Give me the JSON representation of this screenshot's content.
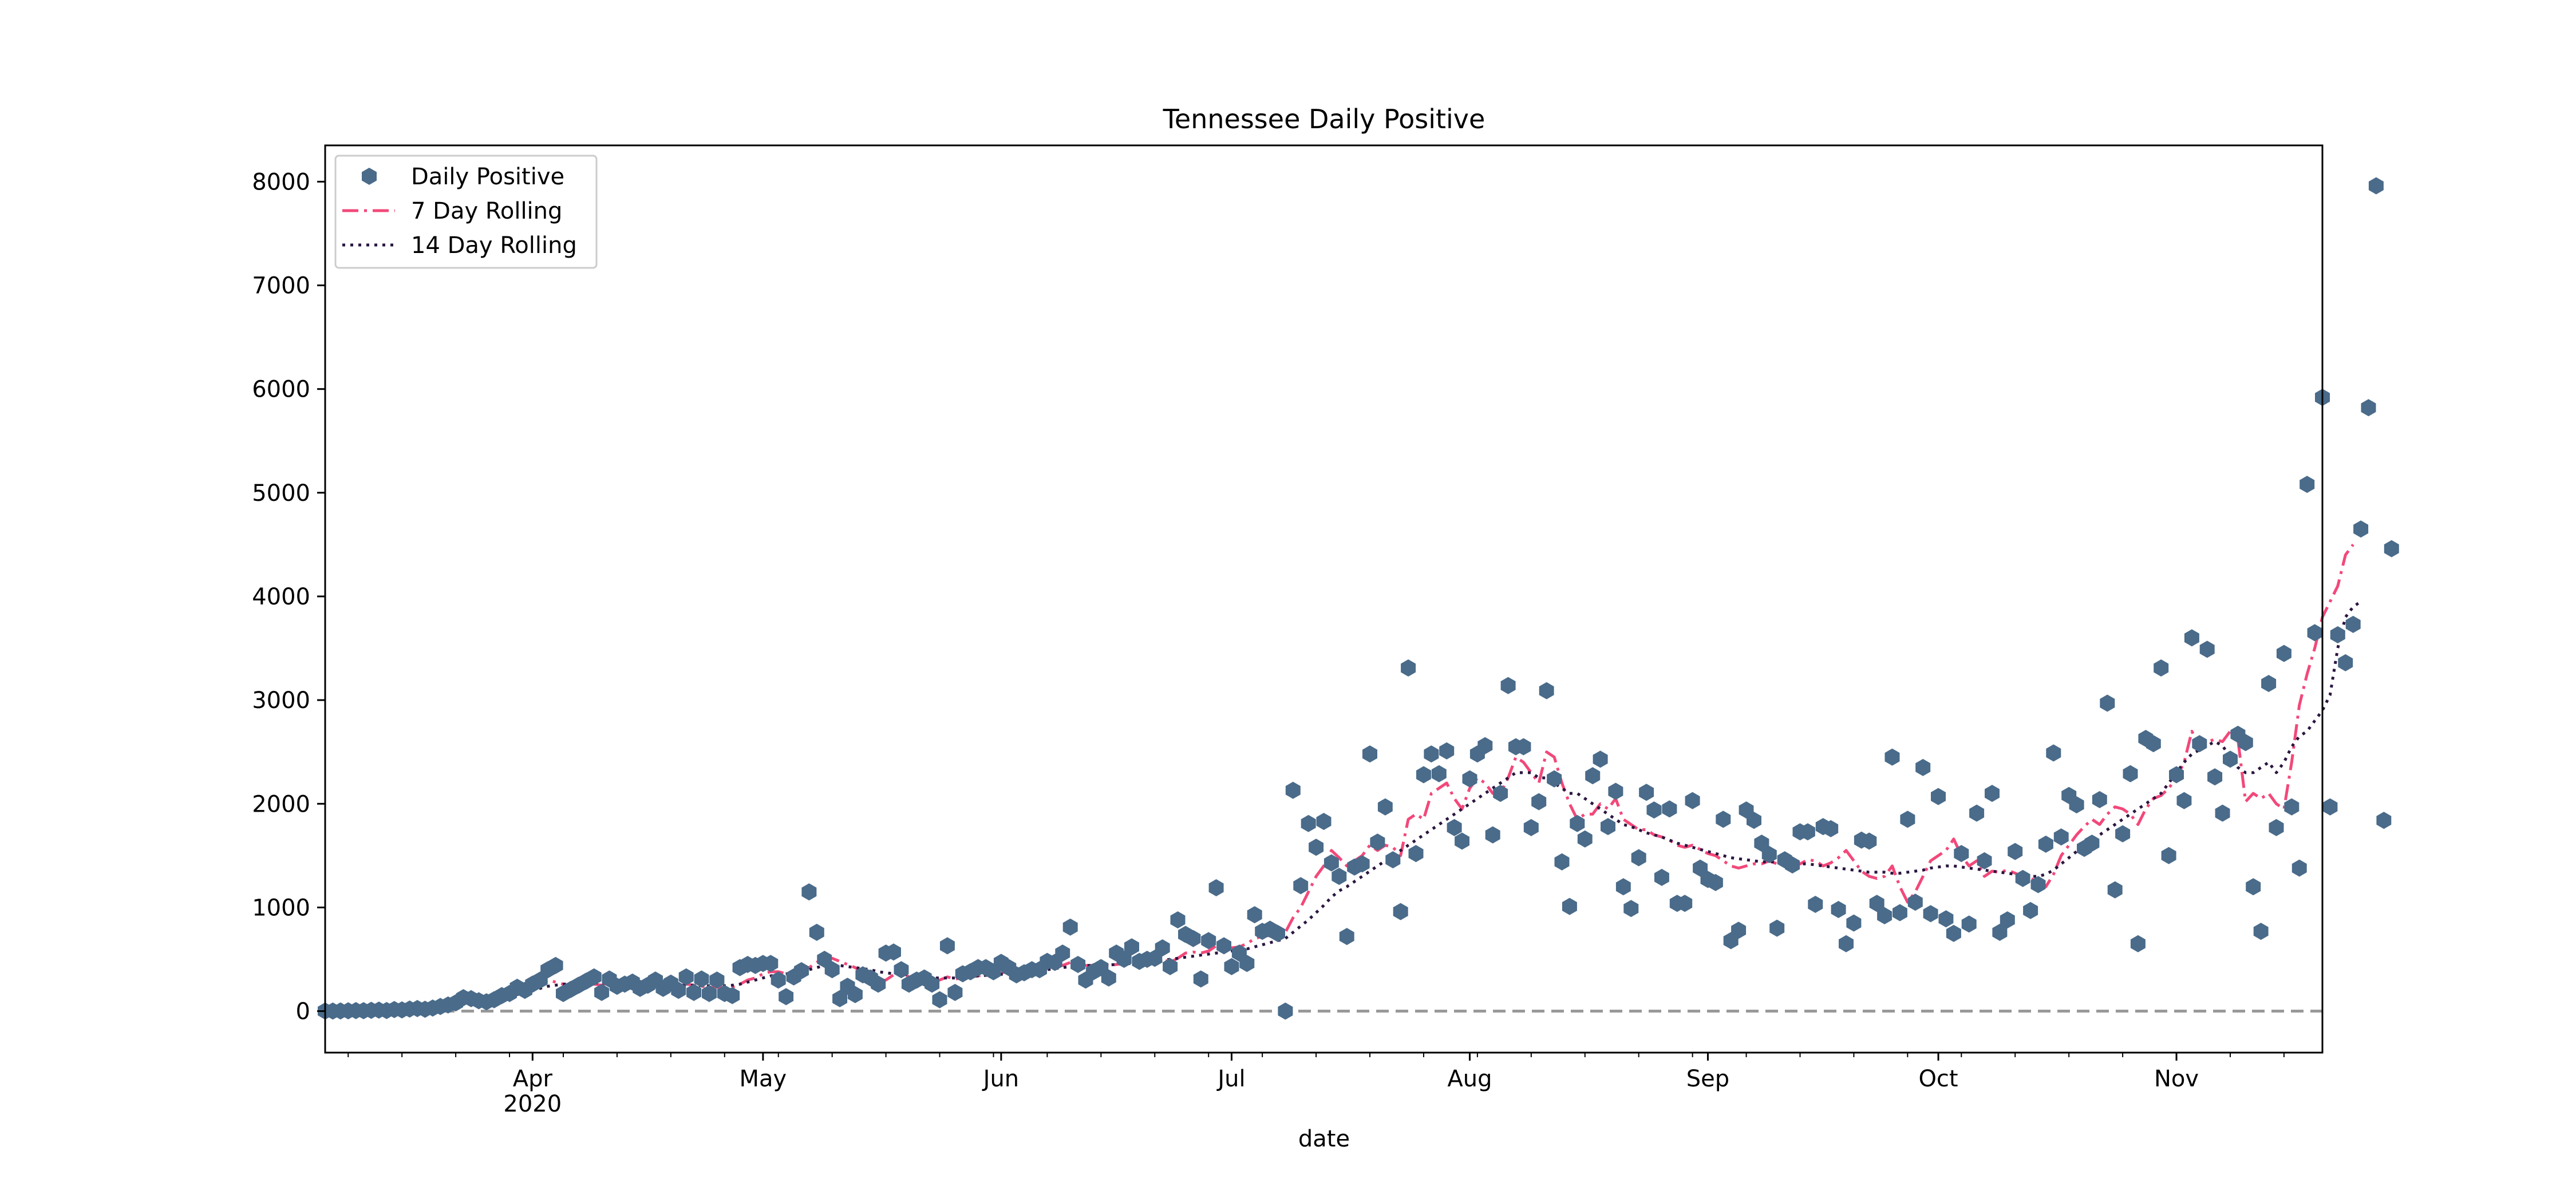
{
  "chart_data": {
    "type": "scatter",
    "title": "Tennessee Daily Positive",
    "xlabel": "date",
    "ylabel": "",
    "ylim": [
      -400,
      8350
    ],
    "xlim": [
      "2020-03-05",
      "2020-11-20"
    ],
    "yticks": [
      0,
      1000,
      2000,
      3000,
      4000,
      5000,
      6000,
      7000,
      8000
    ],
    "xticks": [
      {
        "date": "2020-04-01",
        "label": "Apr",
        "sublabel": "2020"
      },
      {
        "date": "2020-05-01",
        "label": "May"
      },
      {
        "date": "2020-06-01",
        "label": "Jun"
      },
      {
        "date": "2020-07-01",
        "label": "Jul"
      },
      {
        "date": "2020-08-01",
        "label": "Aug"
      },
      {
        "date": "2020-09-01",
        "label": "Sep"
      },
      {
        "date": "2020-10-01",
        "label": "Oct"
      },
      {
        "date": "2020-11-01",
        "label": "Nov"
      }
    ],
    "minor_xticks": [
      "2020-03-08",
      "2020-03-15",
      "2020-03-22",
      "2020-03-29",
      "2020-04-05",
      "2020-04-12",
      "2020-04-19",
      "2020-04-26",
      "2020-05-03",
      "2020-05-10",
      "2020-05-17",
      "2020-05-24",
      "2020-05-31",
      "2020-06-07",
      "2020-06-14",
      "2020-06-21",
      "2020-06-28",
      "2020-07-05",
      "2020-07-12",
      "2020-07-19",
      "2020-07-26",
      "2020-08-02",
      "2020-08-09",
      "2020-08-16",
      "2020-08-23",
      "2020-08-30",
      "2020-09-06",
      "2020-09-13",
      "2020-09-20",
      "2020-09-27",
      "2020-10-04",
      "2020-10-11",
      "2020-10-18",
      "2020-10-25",
      "2020-11-01",
      "2020-11-08",
      "2020-11-15"
    ],
    "start_date": "2020-03-05",
    "grid": false,
    "legend_position": "top-left",
    "reference_line": {
      "y": 0,
      "style": "dashed",
      "color": "#999999"
    },
    "series": [
      {
        "name": "Daily Positive",
        "type": "scatter",
        "marker": "hexagon",
        "color": "#4a6b8a",
        "values": [
          1,
          1,
          2,
          3,
          5,
          4,
          8,
          10,
          6,
          15,
          12,
          20,
          25,
          18,
          30,
          45,
          60,
          80,
          130,
          120,
          100,
          90,
          110,
          150,
          170,
          230,
          200,
          260,
          300,
          400,
          440,
          170,
          210,
          250,
          290,
          330,
          180,
          310,
          240,
          260,
          280,
          220,
          250,
          300,
          220,
          270,
          200,
          330,
          180,
          310,
          170,
          300,
          170,
          150,
          420,
          450,
          440,
          460,
          460,
          300,
          140,
          330,
          390,
          1150,
          760,
          500,
          400,
          120,
          240,
          160,
          350,
          320,
          260,
          560,
          570,
          400,
          260,
          300,
          320,
          260,
          110,
          630,
          180,
          360,
          380,
          420,
          420,
          380,
          470,
          420,
          350,
          370,
          400,
          400,
          480,
          470,
          560,
          810,
          450,
          300,
          380,
          420,
          320,
          560,
          500,
          620,
          480,
          500,
          510,
          610,
          430,
          880,
          740,
          700,
          310,
          680,
          1190,
          630,
          430,
          560,
          460,
          930,
          770,
          790,
          750,
          0,
          2130,
          1210,
          1810,
          1580,
          1830,
          1430,
          1300,
          720,
          1390,
          1420,
          2480,
          1630,
          1970,
          1460,
          960,
          3310,
          1520,
          2280,
          2480,
          2290,
          2510,
          1770,
          1640,
          2240,
          2480,
          2560,
          1700,
          2100,
          3140,
          2550,
          2550,
          1770,
          2020,
          3090,
          2240,
          1440,
          1010,
          1810,
          1660,
          2270,
          2430,
          1780,
          2120,
          1200,
          990,
          1480,
          2110,
          1940,
          1290,
          1950,
          1040,
          1040,
          2030,
          1380,
          1270,
          1240,
          1850,
          680,
          780,
          1940,
          1840,
          1620,
          1510,
          800,
          1460,
          1410,
          1730,
          1730,
          1030,
          1780,
          1760,
          980,
          650,
          850,
          1650,
          1640,
          1040,
          920,
          2450,
          950,
          1850,
          1050,
          2350,
          940,
          2070,
          890,
          750,
          1520,
          840,
          1910,
          1450,
          2100,
          760,
          880,
          1540,
          1280,
          970,
          1220,
          1610,
          2490,
          1680,
          2080,
          1990,
          1570,
          1620,
          2040,
          2970,
          1170,
          1710,
          2290,
          650,
          2630,
          2580,
          3310,
          1500,
          2280,
          2030,
          3600,
          2580,
          3490,
          2260,
          1910,
          2430,
          2670,
          2590,
          1200,
          770,
          3160,
          1770,
          3450,
          1970,
          1380,
          5080,
          3650,
          5920,
          1970,
          3630,
          3360,
          3730,
          4650,
          5820,
          7960,
          1840,
          4460
        ]
      },
      {
        "name": "7 Day Rolling",
        "type": "line",
        "style": "dashdot",
        "color": "#f2487a",
        "values": [
          1,
          1,
          2,
          3,
          5,
          4,
          8,
          10,
          6,
          15,
          12,
          20,
          25,
          18,
          30,
          45,
          60,
          80,
          110,
          120,
          100,
          90,
          110,
          150,
          170,
          190,
          200,
          220,
          260,
          300,
          280,
          260,
          250,
          270,
          280,
          260,
          250,
          280,
          270,
          260,
          250,
          240,
          240,
          260,
          250,
          240,
          240,
          260,
          250,
          240,
          230,
          230,
          230,
          230,
          260,
          300,
          320,
          360,
          380,
          380,
          360,
          370,
          380,
          420,
          470,
          520,
          510,
          480,
          450,
          420,
          370,
          330,
          290,
          300,
          350,
          380,
          330,
          320,
          310,
          290,
          300,
          330,
          310,
          320,
          330,
          340,
          350,
          360,
          370,
          380,
          380,
          390,
          400,
          410,
          420,
          430,
          440,
          470,
          460,
          440,
          440,
          450,
          440,
          450,
          460,
          480,
          490,
          500,
          510,
          500,
          470,
          510,
          560,
          570,
          560,
          580,
          630,
          640,
          610,
          620,
          650,
          700,
          720,
          730,
          740,
          760,
          900,
          1000,
          1150,
          1300,
          1400,
          1550,
          1480,
          1400,
          1450,
          1500,
          1600,
          1550,
          1600,
          1580,
          1500,
          1850,
          1900,
          1850,
          2100,
          2150,
          2200,
          2050,
          1950,
          2150,
          2250,
          2200,
          2100,
          2100,
          2250,
          2450,
          2400,
          2300,
          2200,
          2500,
          2450,
          2200,
          2000,
          1850,
          1900,
          1900,
          2000,
          1950,
          2050,
          1850,
          1800,
          1750,
          1750,
          1700,
          1680,
          1650,
          1600,
          1580,
          1600,
          1560,
          1520,
          1500,
          1450,
          1400,
          1380,
          1400,
          1420,
          1420,
          1450,
          1420,
          1420,
          1400,
          1420,
          1460,
          1450,
          1400,
          1430,
          1480,
          1550,
          1450,
          1350,
          1300,
          1280,
          1300,
          1400,
          1200,
          1050,
          1150,
          1300,
          1450,
          1500,
          1550,
          1660,
          1500,
          1400,
          1450,
          1300,
          1350,
          1340,
          1360,
          1330,
          1300,
          1280,
          1250,
          1200,
          1320,
          1500,
          1600,
          1700,
          1780,
          1850,
          1800,
          1900,
          1970,
          1950,
          1900,
          1800,
          1950,
          2050,
          2080,
          2150,
          2250,
          2400,
          2700,
          2550,
          2600,
          2620,
          2600,
          2700,
          2620,
          2020,
          2100,
          2050,
          2100,
          2000,
          1950,
          2400,
          2950,
          3250,
          3500,
          3800,
          3950,
          4100,
          4400,
          4500
        ]
      },
      {
        "name": "14 Day Rolling",
        "type": "line",
        "style": "dotted",
        "color": "#2b1640",
        "values": [
          1,
          1,
          2,
          3,
          5,
          4,
          8,
          10,
          6,
          15,
          12,
          20,
          25,
          18,
          25,
          35,
          45,
          55,
          65,
          75,
          85,
          95,
          105,
          120,
          140,
          160,
          180,
          200,
          220,
          240,
          250,
          260,
          265,
          270,
          275,
          275,
          270,
          270,
          270,
          265,
          260,
          260,
          255,
          255,
          255,
          250,
          250,
          250,
          250,
          245,
          245,
          245,
          245,
          250,
          260,
          280,
          300,
          320,
          340,
          350,
          360,
          370,
          380,
          400,
          420,
          440,
          450,
          440,
          430,
          420,
          410,
          400,
          380,
          370,
          360,
          360,
          350,
          340,
          330,
          320,
          320,
          320,
          320,
          330,
          335,
          340,
          345,
          350,
          355,
          360,
          365,
          370,
          380,
          390,
          400,
          410,
          420,
          430,
          440,
          440,
          440,
          445,
          445,
          450,
          455,
          460,
          465,
          470,
          480,
          490,
          500,
          510,
          520,
          530,
          540,
          550,
          560,
          570,
          580,
          590,
          600,
          620,
          640,
          660,
          680,
          700,
          760,
          820,
          880,
          950,
          1020,
          1100,
          1160,
          1200,
          1250,
          1300,
          1350,
          1400,
          1450,
          1500,
          1550,
          1600,
          1650,
          1700,
          1750,
          1800,
          1850,
          1900,
          1950,
          2000,
          2050,
          2100,
          2150,
          2200,
          2250,
          2300,
          2300,
          2300,
          2250,
          2250,
          2200,
          2150,
          2100,
          2100,
          2050,
          2000,
          1950,
          1900,
          1850,
          1800,
          1780,
          1750,
          1720,
          1700,
          1680,
          1650,
          1620,
          1600,
          1580,
          1560,
          1540,
          1520,
          1500,
          1480,
          1470,
          1460,
          1450,
          1440,
          1440,
          1440,
          1430,
          1430,
          1420,
          1420,
          1410,
          1400,
          1390,
          1380,
          1370,
          1360,
          1350,
          1340,
          1340,
          1340,
          1330,
          1330,
          1340,
          1350,
          1360,
          1380,
          1390,
          1400,
          1400,
          1390,
          1380,
          1370,
          1360,
          1350,
          1340,
          1330,
          1320,
          1310,
          1300,
          1300,
          1320,
          1360,
          1420,
          1480,
          1540,
          1600,
          1650,
          1700,
          1750,
          1800,
          1850,
          1900,
          1950,
          2000,
          2050,
          2100,
          2200,
          2300,
          2400,
          2480,
          2520,
          2560,
          2600,
          2560,
          2450,
          2350,
          2300,
          2300,
          2350,
          2400,
          2300,
          2400,
          2550,
          2650,
          2700,
          2800,
          2900,
          3050,
          3500,
          3800,
          3900,
          3950
        ]
      }
    ]
  }
}
